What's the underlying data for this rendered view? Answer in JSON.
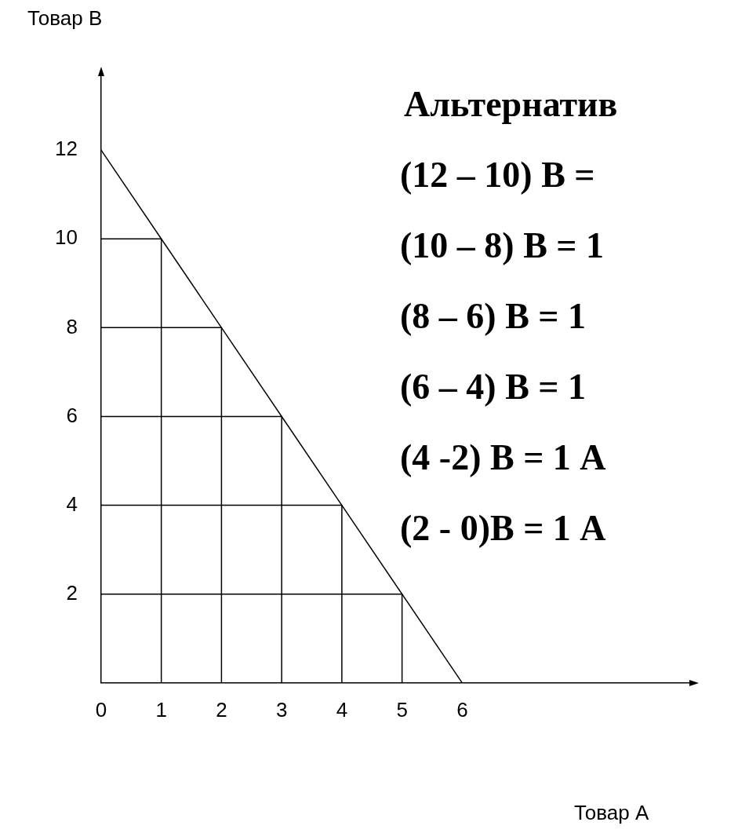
{
  "chart_data": {
    "type": "line",
    "xlabel": "Товар А",
    "ylabel": "Товар В",
    "annotations": [
      "Альтернатив",
      "(12 – 10) В =",
      "(10 – 8) В = 1",
      "(8 – 6) В = 1",
      "(6 – 4) В = 1",
      "(4 -2) В = 1 А",
      "(2 - 0)В = 1 А"
    ],
    "series": [
      {
        "color": "#000000",
        "x": [
          0,
          1,
          2,
          3,
          4,
          5,
          6
        ],
        "values": [
          12,
          10,
          8,
          6,
          4,
          2,
          0
        ]
      },
      {
        "type": "line",
        "color": "#000000",
        "x": [
          0,
          1,
          1
        ],
        "values": [
          10,
          10,
          0
        ]
      },
      {
        "type": "line",
        "color": "#000000",
        "x": [
          0,
          2,
          2
        ],
        "values": [
          8,
          8,
          0
        ]
      },
      {
        "type": "line",
        "color": "#000000",
        "x": [
          0,
          3,
          3
        ],
        "values": [
          6,
          6,
          0
        ]
      },
      {
        "type": "line",
        "color": "#000000",
        "x": [
          0,
          4,
          4
        ],
        "values": [
          4,
          4,
          0
        ]
      },
      {
        "type": "line",
        "color": "#000000",
        "x": [
          0,
          5,
          5
        ],
        "values": [
          2,
          2,
          0
        ]
      }
    ],
    "xlim": [
      0,
      9.8
    ],
    "ylim": [
      0,
      13.7
    ],
    "xticks": [
      0,
      1,
      2,
      3,
      4,
      5,
      6
    ],
    "yticks": [
      2,
      4,
      6,
      8,
      10,
      12
    ],
    "marker": "none"
  }
}
